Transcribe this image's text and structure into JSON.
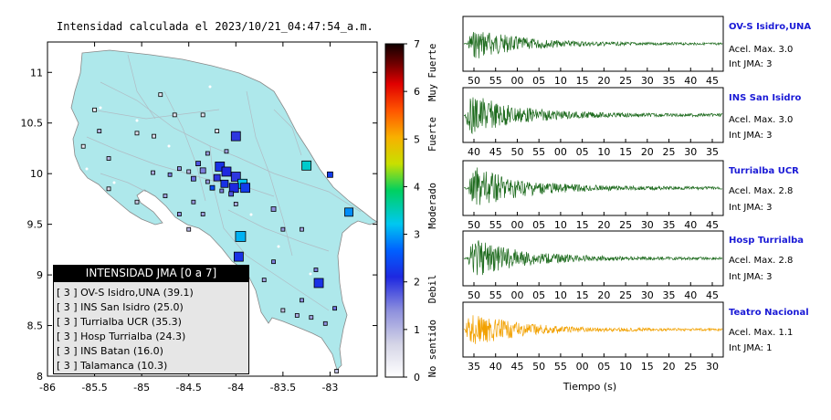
{
  "map": {
    "title": "Intensidad calculada el 2023/10/21_04:47:54_a.m.",
    "lon_ticks": [
      "-86",
      "-85.5",
      "-85",
      "-84.5",
      "-84",
      "-83.5",
      "-83"
    ],
    "lat_ticks": [
      "8",
      "8.5",
      "9",
      "9.5",
      "10",
      "10.5",
      "11"
    ],
    "legend": {
      "header": "INTENSIDAD JMA [0 a 7]",
      "items": [
        "[ 3 ]  OV-S Isidro,UNA (39.1)",
        "[ 3 ]  INS San Isidro (25.0)",
        "[ 3 ]  Turrialba UCR (35.3)",
        "[ 3 ]  Hosp Turrialba (24.3)",
        "[ 3 ]  INS Batan (16.0)",
        "[ 3 ]  Talamanca (10.3)"
      ]
    }
  },
  "colorbar": {
    "ticks": [
      "0",
      "1",
      "2",
      "3",
      "4",
      "5",
      "6",
      "7"
    ],
    "categories": [
      "No sentido",
      "Debil",
      "Moderado",
      "Fuerte",
      "Muy Fuerte"
    ]
  },
  "waveforms": {
    "xlabel": "Tiempo (s)",
    "panels": [
      {
        "name": "OV-S Isidro,UNA",
        "acel": "Acel. Max. 3.0",
        "jma": "Int JMA: 3",
        "ticks": [
          "50",
          "55",
          "00",
          "05",
          "10",
          "15",
          "20",
          "25",
          "30",
          "35",
          "40",
          "45"
        ],
        "color": "#1e6b1e"
      },
      {
        "name": "INS San Isidro",
        "acel": "Acel. Max. 3.0",
        "jma": "Int JMA: 3",
        "ticks": [
          "40",
          "45",
          "50",
          "55",
          "00",
          "05",
          "10",
          "15",
          "20",
          "25",
          "30",
          "35"
        ],
        "color": "#1e6b1e"
      },
      {
        "name": "Turrialba UCR",
        "acel": "Acel. Max. 2.8",
        "jma": "Int JMA: 3",
        "ticks": [
          "50",
          "55",
          "00",
          "05",
          "10",
          "15",
          "20",
          "25",
          "30",
          "35",
          "40",
          "45"
        ],
        "color": "#1e6b1e"
      },
      {
        "name": "Hosp Turrialba",
        "acel": "Acel. Max. 2.8",
        "jma": "Int JMA: 3",
        "ticks": [
          "50",
          "55",
          "00",
          "05",
          "10",
          "15",
          "20",
          "25",
          "30",
          "35",
          "40",
          "45"
        ],
        "color": "#1e6b1e"
      },
      {
        "name": "Teatro Nacional",
        "acel": "Acel. Max. 1.1",
        "jma": "Int JMA: 1",
        "ticks": [
          "35",
          "40",
          "45",
          "50",
          "55",
          "00",
          "05",
          "10",
          "15",
          "20",
          "25",
          "30"
        ],
        "color": "#f2a100"
      }
    ]
  },
  "chart_data": [
    {
      "type": "scatter",
      "title": "Intensidad calculada el 2023/10/21_04:47:54_a.m.",
      "xlim": [
        -86,
        -82.5
      ],
      "ylim": [
        8,
        11.3
      ],
      "value_range": [
        0,
        7
      ],
      "points": [
        {
          "lon": -84.0,
          "lat": 10.37,
          "int": 2.0,
          "s": 10
        },
        {
          "lon": -83.25,
          "lat": 10.08,
          "int": 3.4,
          "s": 10
        },
        {
          "lon": -84.17,
          "lat": 10.07,
          "int": 2.2,
          "s": 10
        },
        {
          "lon": -84.1,
          "lat": 10.02,
          "int": 2.1,
          "s": 10
        },
        {
          "lon": -84.0,
          "lat": 9.97,
          "int": 2.0,
          "s": 10
        },
        {
          "lon": -83.93,
          "lat": 9.9,
          "int": 3.2,
          "s": 10
        },
        {
          "lon": -83.9,
          "lat": 9.86,
          "int": 2.3,
          "s": 10
        },
        {
          "lon": -84.02,
          "lat": 9.86,
          "int": 2.1,
          "s": 10
        },
        {
          "lon": -84.12,
          "lat": 9.9,
          "int": 2.2,
          "s": 8
        },
        {
          "lon": -84.2,
          "lat": 9.96,
          "int": 2.0,
          "s": 7
        },
        {
          "lon": -84.35,
          "lat": 10.03,
          "int": 1.5,
          "s": 6
        },
        {
          "lon": -82.8,
          "lat": 9.62,
          "int": 2.9,
          "s": 9
        },
        {
          "lon": -83.95,
          "lat": 9.38,
          "int": 3.1,
          "s": 11
        },
        {
          "lon": -83.97,
          "lat": 9.18,
          "int": 2.2,
          "s": 10
        },
        {
          "lon": -83.12,
          "lat": 8.92,
          "int": 2.2,
          "s": 10
        },
        {
          "lon": -83.0,
          "lat": 9.99,
          "int": 2.3,
          "s": 6
        },
        {
          "lon": -83.6,
          "lat": 9.65,
          "int": 1.4,
          "s": 5
        },
        {
          "lon": -84.4,
          "lat": 10.1,
          "int": 1.8,
          "s": 5
        },
        {
          "lon": -84.5,
          "lat": 10.02,
          "int": 1.0,
          "s": 4
        },
        {
          "lon": -84.45,
          "lat": 9.95,
          "int": 1.6,
          "s": 5
        },
        {
          "lon": -84.3,
          "lat": 9.92,
          "int": 1.3,
          "s": 4
        },
        {
          "lon": -84.25,
          "lat": 9.86,
          "int": 2.5,
          "s": 5
        },
        {
          "lon": -84.15,
          "lat": 9.83,
          "int": 1.5,
          "s": 4
        },
        {
          "lon": -84.05,
          "lat": 9.8,
          "int": 1.8,
          "s": 5
        },
        {
          "lon": -84.3,
          "lat": 10.2,
          "int": 1.3,
          "s": 4
        },
        {
          "lon": -84.1,
          "lat": 10.22,
          "int": 1.2,
          "s": 4
        },
        {
          "lon": -84.6,
          "lat": 10.05,
          "int": 1.4,
          "s": 4
        },
        {
          "lon": -84.7,
          "lat": 9.99,
          "int": 1.5,
          "s": 4
        },
        {
          "lon": -84.45,
          "lat": 9.72,
          "int": 1.3,
          "s": 4
        },
        {
          "lon": -84.35,
          "lat": 9.6,
          "int": 1.2,
          "s": 4
        },
        {
          "lon": -84.6,
          "lat": 9.6,
          "int": 1.4,
          "s": 4
        },
        {
          "lon": -84.0,
          "lat": 9.7,
          "int": 1.1,
          "s": 4
        },
        {
          "lon": -84.75,
          "lat": 9.78,
          "int": 1.2,
          "s": 4
        },
        {
          "lon": -84.88,
          "lat": 10.01,
          "int": 1.1,
          "s": 4
        },
        {
          "lon": -85.45,
          "lat": 10.42,
          "int": 1.0,
          "s": 4
        },
        {
          "lon": -85.62,
          "lat": 10.27,
          "int": 0.4,
          "s": 4
        },
        {
          "lon": -85.35,
          "lat": 10.15,
          "int": 1.0,
          "s": 4
        },
        {
          "lon": -85.05,
          "lat": 10.4,
          "int": 0.5,
          "s": 4
        },
        {
          "lon": -84.87,
          "lat": 10.37,
          "int": 0.6,
          "s": 4
        },
        {
          "lon": -84.65,
          "lat": 10.58,
          "int": 0.4,
          "s": 4
        },
        {
          "lon": -84.2,
          "lat": 10.42,
          "int": 0.5,
          "s": 4
        },
        {
          "lon": -84.35,
          "lat": 10.58,
          "int": 0.4,
          "s": 4
        },
        {
          "lon": -84.8,
          "lat": 10.78,
          "int": 0.4,
          "s": 4
        },
        {
          "lon": -85.5,
          "lat": 10.63,
          "int": 0.3,
          "s": 4
        },
        {
          "lon": -85.35,
          "lat": 9.85,
          "int": 0.6,
          "s": 4
        },
        {
          "lon": -85.05,
          "lat": 9.72,
          "int": 0.8,
          "s": 4
        },
        {
          "lon": -84.5,
          "lat": 9.45,
          "int": 1.0,
          "s": 4
        },
        {
          "lon": -83.6,
          "lat": 9.13,
          "int": 1.5,
          "s": 4
        },
        {
          "lon": -83.7,
          "lat": 8.95,
          "int": 1.2,
          "s": 4
        },
        {
          "lon": -83.5,
          "lat": 8.65,
          "int": 0.9,
          "s": 4
        },
        {
          "lon": -83.35,
          "lat": 8.6,
          "int": 1.1,
          "s": 4
        },
        {
          "lon": -83.2,
          "lat": 8.58,
          "int": 1.2,
          "s": 4
        },
        {
          "lon": -83.05,
          "lat": 8.52,
          "int": 1.4,
          "s": 4
        },
        {
          "lon": -82.95,
          "lat": 8.67,
          "int": 1.6,
          "s": 4
        },
        {
          "lon": -83.3,
          "lat": 8.75,
          "int": 1.4,
          "s": 4
        },
        {
          "lon": -83.5,
          "lat": 9.45,
          "int": 1.3,
          "s": 4
        },
        {
          "lon": -83.3,
          "lat": 9.45,
          "int": 1.2,
          "s": 4
        },
        {
          "lon": -82.93,
          "lat": 8.05,
          "int": 0.9,
          "s": 4
        },
        {
          "lon": -83.15,
          "lat": 9.05,
          "int": 1.5,
          "s": 4
        }
      ]
    },
    {
      "type": "line",
      "name": "OV-S Isidro,UNA",
      "values": []
    },
    {
      "type": "line",
      "name": "INS San Isidro",
      "values": []
    },
    {
      "type": "line",
      "name": "Turrialba UCR",
      "values": []
    },
    {
      "type": "line",
      "name": "Hosp Turrialba",
      "values": []
    },
    {
      "type": "line",
      "name": "Teatro Nacional",
      "values": []
    }
  ]
}
